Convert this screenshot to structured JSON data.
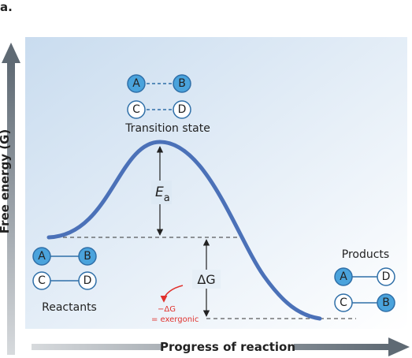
{
  "panel_label": "a.",
  "y_axis_label": "Free energy (G)",
  "x_axis_label": "Progress of reaction",
  "transition_state": {
    "label": "Transition state",
    "top_pair": [
      "A",
      "B"
    ],
    "bottom_pair": [
      "C",
      "D"
    ]
  },
  "reactants": {
    "label": "Reactants",
    "top_pair": [
      "A",
      "B"
    ],
    "bottom_pair": [
      "C",
      "D"
    ]
  },
  "products": {
    "label": "Products",
    "top_pair": [
      "A",
      "D"
    ],
    "bottom_pair": [
      "C",
      "B"
    ]
  },
  "activation_energy_label": "E",
  "activation_energy_subscript": "a",
  "delta_g_label": "ΔG",
  "annotation": {
    "line1": "−ΔG",
    "line2": "= exergonic"
  },
  "colors": {
    "panel_gradient_start": "#c9dcef",
    "panel_gradient_end": "#ffffff",
    "curve": "#4b71b8",
    "filled_node": "#4aa3dc",
    "node_stroke": "#2f6fa8",
    "axis_arrow": "#6f7a85",
    "annotation": "#e0312d"
  }
}
